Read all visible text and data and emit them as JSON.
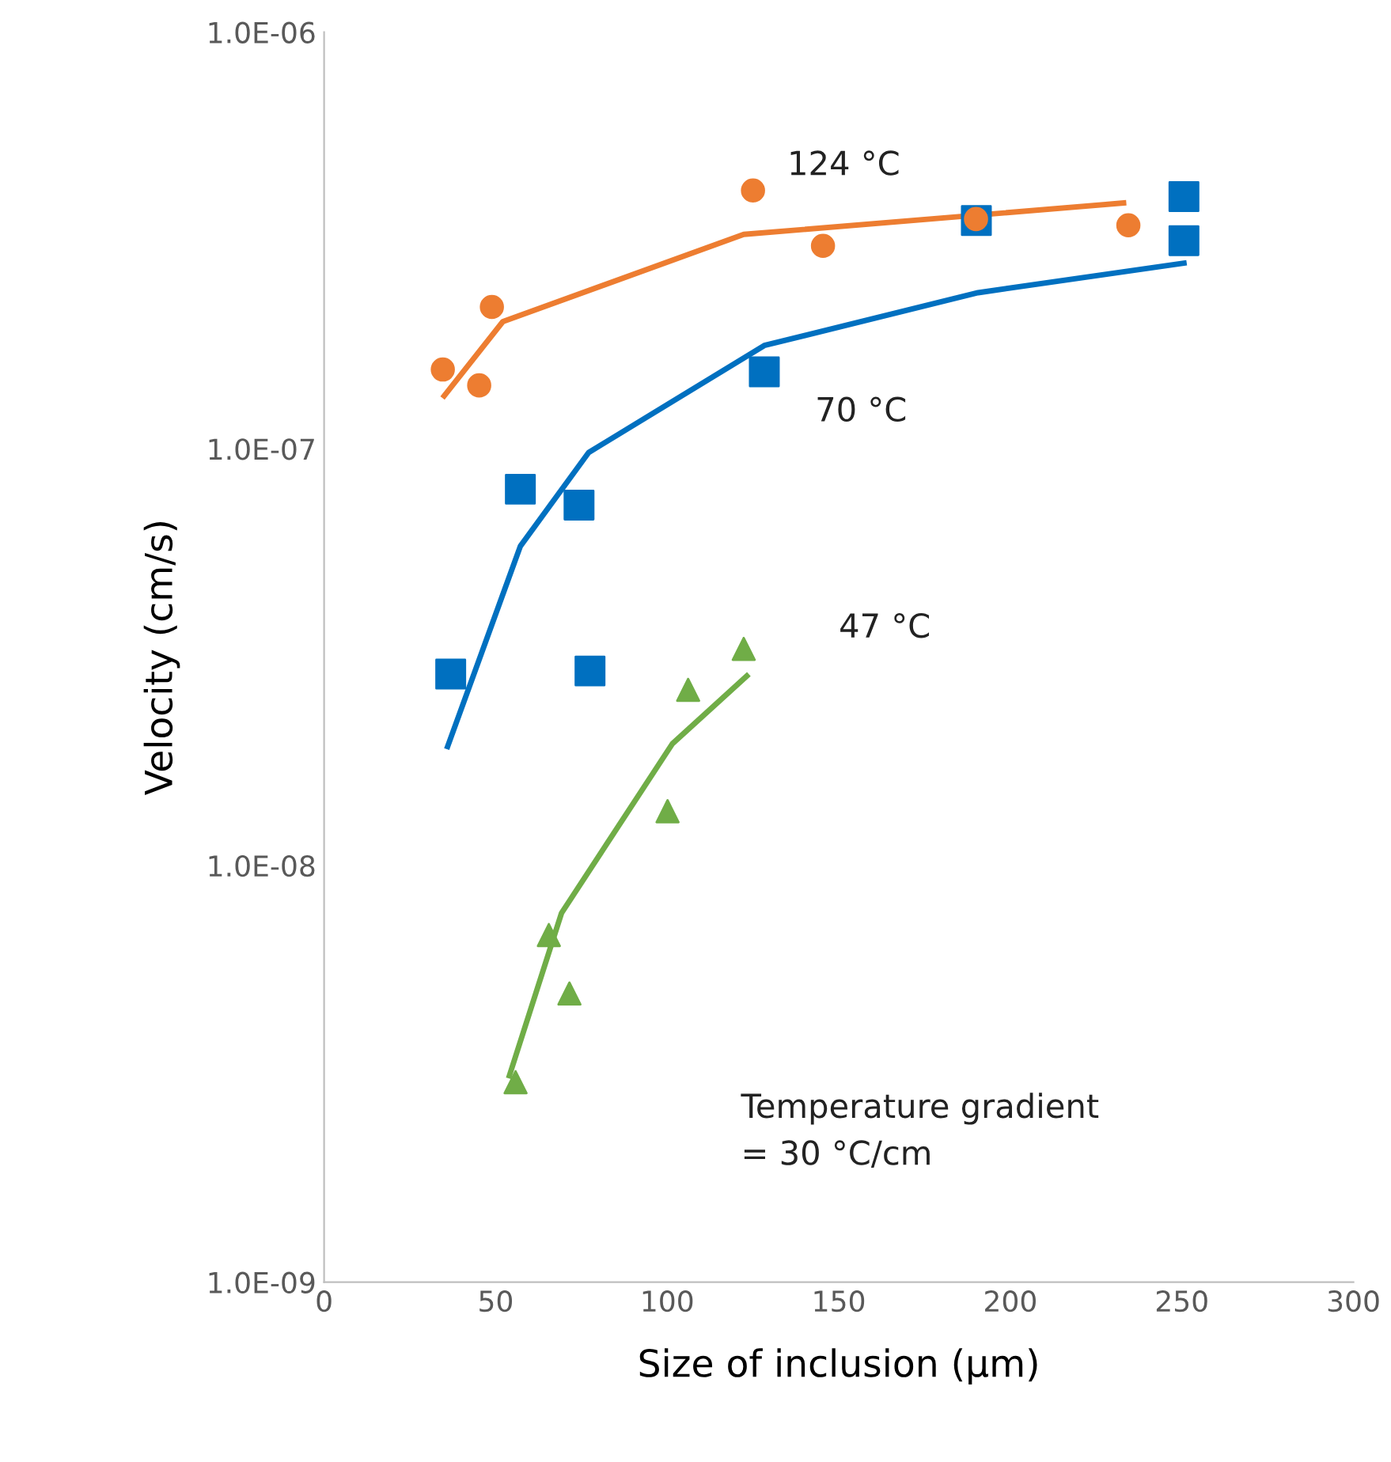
{
  "chart_data": {
    "type": "scatter",
    "xlabel": "Size of inclusion (μm)",
    "ylabel": "Velocity (cm/s)",
    "log": "y",
    "grid": false,
    "xlim": [
      0,
      300
    ],
    "xticks": [
      0,
      50,
      100,
      150,
      200,
      250,
      300
    ],
    "ylim": [
      1e-09,
      1e-06
    ],
    "yticks": [
      {
        "value": 1e-09,
        "label": "1.0E-09"
      },
      {
        "value": 1e-08,
        "label": "1.0E-08"
      },
      {
        "value": 1e-07,
        "label": "1.0E-07"
      },
      {
        "value": 1e-06,
        "label": "1.0E-06"
      }
    ],
    "series": [
      {
        "marker": "circle",
        "color": "#ed7d31",
        "x": [
          34.6,
          45.2,
          48.9,
          125,
          145.4,
          190,
          234.4
        ],
        "values": [
          1.55e-07,
          1.42e-07,
          2.19e-07,
          4.17e-07,
          3.07e-07,
          3.56e-07,
          3.44e-07
        ]
      },
      {
        "type": "line",
        "marker": "none",
        "color": "#ed7d31",
        "x": [
          35,
          52.1,
          122.3,
          233
        ],
        "values": [
          1.34e-07,
          2.02e-07,
          3.27e-07,
          3.89e-07
        ]
      },
      {
        "marker": "square",
        "color": "#0070c0",
        "x": [
          36.9,
          57.2,
          74.3,
          77.5,
          128.3,
          190.1,
          250.6,
          250.6
        ],
        "values": [
          2.88e-08,
          8e-08,
          7.33e-08,
          2.93e-08,
          1.53e-07,
          3.53e-07,
          4.03e-07,
          3.16e-07
        ]
      },
      {
        "type": "line",
        "marker": "none",
        "color": "#0070c0",
        "x": [
          36,
          57.2,
          77.1,
          128.3,
          190.6,
          250.6
        ],
        "values": [
          1.93e-08,
          5.84e-08,
          9.8e-08,
          1.77e-07,
          2.37e-07,
          2.79e-07
        ]
      },
      {
        "marker": "triangle",
        "color": "#70ad47",
        "x": [
          55.8,
          65.5,
          71.5,
          100.1,
          106.1,
          122.3
        ],
        "values": [
          3.02e-09,
          6.81e-09,
          4.93e-09,
          1.35e-08,
          2.64e-08,
          3.31e-08
        ]
      },
      {
        "type": "line",
        "marker": "none",
        "color": "#70ad47",
        "x": [
          54,
          69.2,
          101.5,
          123.2
        ],
        "values": [
          3.13e-09,
          7.69e-09,
          1.96e-08,
          2.85e-08
        ]
      }
    ],
    "annotations": [
      "124 °C",
      "70 °C",
      "47 °C",
      "Temperature gradient\n= 30 °C/cm"
    ]
  }
}
